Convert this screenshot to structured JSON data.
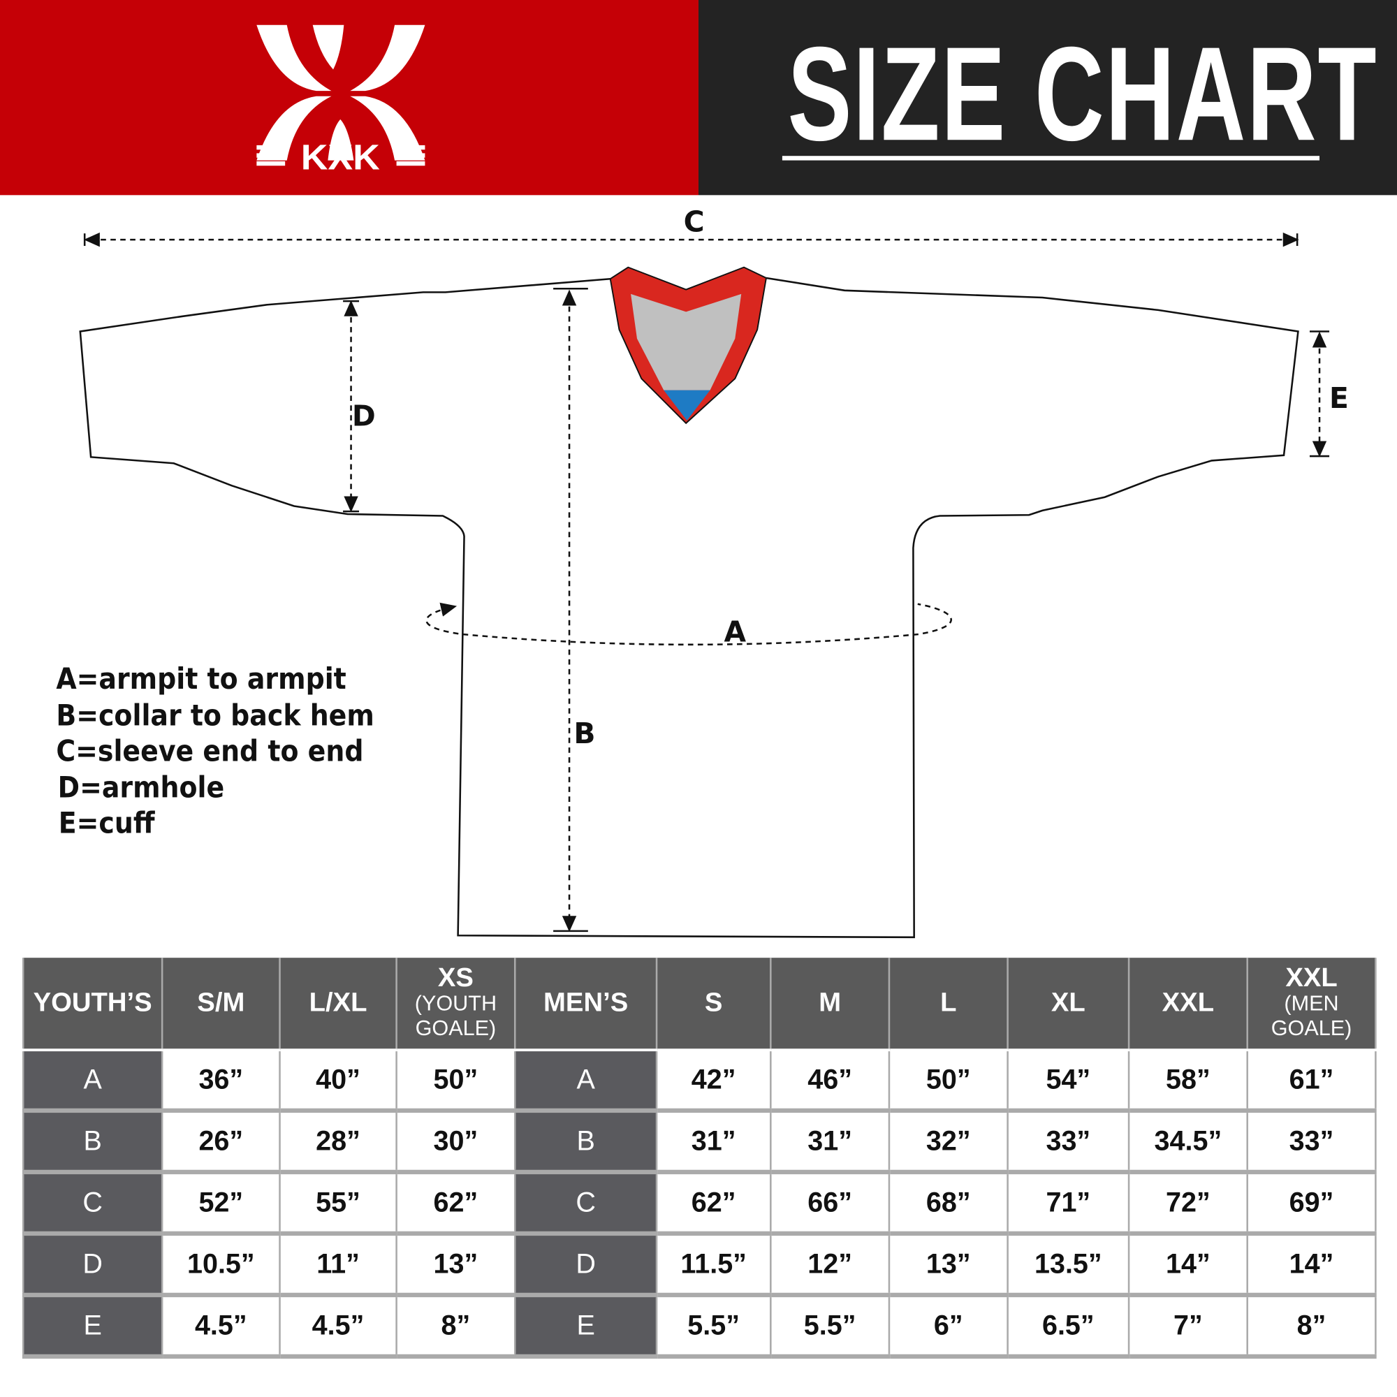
{
  "brand": {
    "logo_text": "KXK",
    "color_red": "#c50006",
    "color_dark": "#232323"
  },
  "header": {
    "title": "SIZE CHART"
  },
  "diagram": {
    "labels": {
      "a": "A",
      "b": "B",
      "c": "C",
      "d": "D",
      "e": "E"
    },
    "collar_colors": {
      "trim": "#d9271f",
      "inner": "#c0c0c0",
      "accent": "#1e7bc4"
    }
  },
  "legend": [
    "A=armpit to armpit",
    "B=collar to back hem",
    "C=sleeve end to end",
    "D=armhole",
    "E=cuff"
  ],
  "table": {
    "headers": [
      {
        "main": "YOUTH’S",
        "sub": ""
      },
      {
        "main": "S/M",
        "sub": ""
      },
      {
        "main": "L/XL",
        "sub": ""
      },
      {
        "main": "XS",
        "sub": "(YOUTH GOALE)"
      },
      {
        "main": "MEN’S",
        "sub": ""
      },
      {
        "main": "S",
        "sub": ""
      },
      {
        "main": "M",
        "sub": ""
      },
      {
        "main": "L",
        "sub": ""
      },
      {
        "main": "XL",
        "sub": ""
      },
      {
        "main": "XXL",
        "sub": ""
      },
      {
        "main": "XXL",
        "sub": "(MEN GOALE)"
      }
    ],
    "rows": [
      {
        "label": "A",
        "youth": [
          "36”",
          "40”",
          "50”"
        ],
        "men_label": "A",
        "men": [
          "42”",
          "46”",
          "50”",
          "54”",
          "58”",
          "61”"
        ]
      },
      {
        "label": "B",
        "youth": [
          "26”",
          "28”",
          "30”"
        ],
        "men_label": "B",
        "men": [
          "31”",
          "31”",
          "32”",
          "33”",
          "34.5”",
          "33”"
        ]
      },
      {
        "label": "C",
        "youth": [
          "52”",
          "55”",
          "62”"
        ],
        "men_label": "C",
        "men": [
          "62”",
          "66”",
          "68”",
          "71”",
          "72”",
          "69”"
        ]
      },
      {
        "label": "D",
        "youth": [
          "10.5”",
          "11”",
          "13”"
        ],
        "men_label": "D",
        "men": [
          "11.5”",
          "12”",
          "13”",
          "13.5”",
          "14”",
          "14”"
        ]
      },
      {
        "label": "E",
        "youth": [
          "4.5”",
          "4.5”",
          "8”"
        ],
        "men_label": "E",
        "men": [
          "5.5”",
          "5.5”",
          "6”",
          "6.5”",
          "7”",
          "8”"
        ]
      }
    ]
  }
}
